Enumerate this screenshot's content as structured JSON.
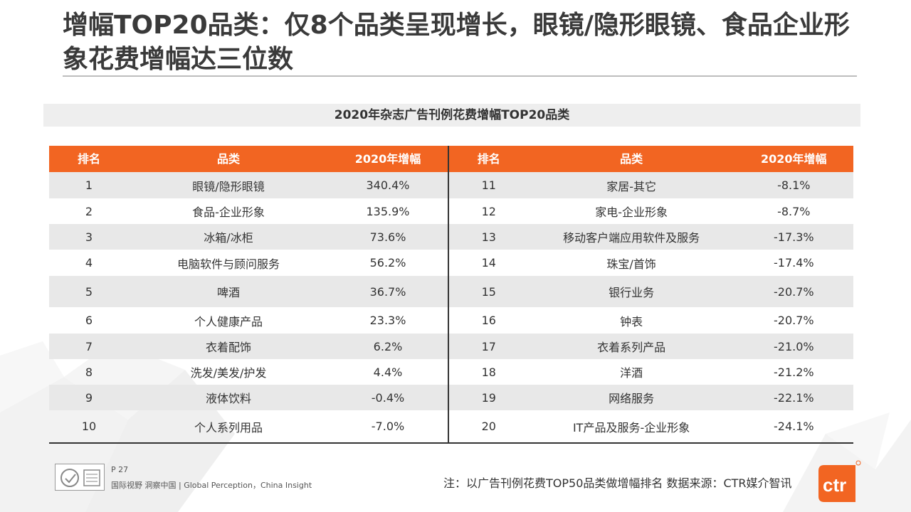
{
  "title": "增幅TOP20品类：仅8个品类呈现增长，眼镜/隐形眼镜、食品企业形象花费增幅达三位数",
  "table_caption": "2020年杂志广告刊例花费增幅TOP20品类",
  "headers": {
    "rank": "排名",
    "category": "品类",
    "growth": "2020年增幅"
  },
  "left_rows": [
    {
      "rank": "1",
      "category": "眼镜/隐形眼镜",
      "growth": "340.4%"
    },
    {
      "rank": "2",
      "category": "食品-企业形象",
      "growth": "135.9%"
    },
    {
      "rank": "3",
      "category": "冰箱/冰柜",
      "growth": "73.6%"
    },
    {
      "rank": "4",
      "category": "电脑软件与顾问服务",
      "growth": "56.2%"
    },
    {
      "rank": "5",
      "category": "啤酒",
      "growth": "36.7%"
    },
    {
      "rank": "6",
      "category": "个人健康产品",
      "growth": "23.3%"
    },
    {
      "rank": "7",
      "category": "衣着配饰",
      "growth": "6.2%"
    },
    {
      "rank": "8",
      "category": "洗发/美发/护发",
      "growth": "4.4%"
    },
    {
      "rank": "9",
      "category": "液体饮料",
      "growth": "-0.4%"
    },
    {
      "rank": "10",
      "category": "个人系列用品",
      "growth": "-7.0%"
    }
  ],
  "right_rows": [
    {
      "rank": "11",
      "category": "家居-其它",
      "growth": "-8.1%"
    },
    {
      "rank": "12",
      "category": "家电-企业形象",
      "growth": "-8.7%"
    },
    {
      "rank": "13",
      "category": "移动客户端应用软件及服务",
      "growth": "-17.3%"
    },
    {
      "rank": "14",
      "category": "珠宝/首饰",
      "growth": "-17.4%"
    },
    {
      "rank": "15",
      "category": "银行业务",
      "growth": "-20.7%"
    },
    {
      "rank": "16",
      "category": "钟表",
      "growth": "-20.7%"
    },
    {
      "rank": "17",
      "category": "衣着系列产品",
      "growth": "-21.0%"
    },
    {
      "rank": "18",
      "category": "洋酒",
      "growth": "-21.2%"
    },
    {
      "rank": "19",
      "category": "网络服务",
      "growth": "-22.1%"
    },
    {
      "rank": "20",
      "category": "IT产品及服务-企业形象",
      "growth": "-24.1%"
    }
  ],
  "footer": {
    "page": "P 27",
    "tagline": "国际视野  洞察中国 |  Global Perception，China Insight",
    "note": "注：以广告刊例花费TOP50品类做增幅排名   数据来源：CTR媒介智讯",
    "logo_text": "ctr"
  },
  "colors": {
    "accent": "#f26522",
    "shade": "#e8e8e8"
  }
}
